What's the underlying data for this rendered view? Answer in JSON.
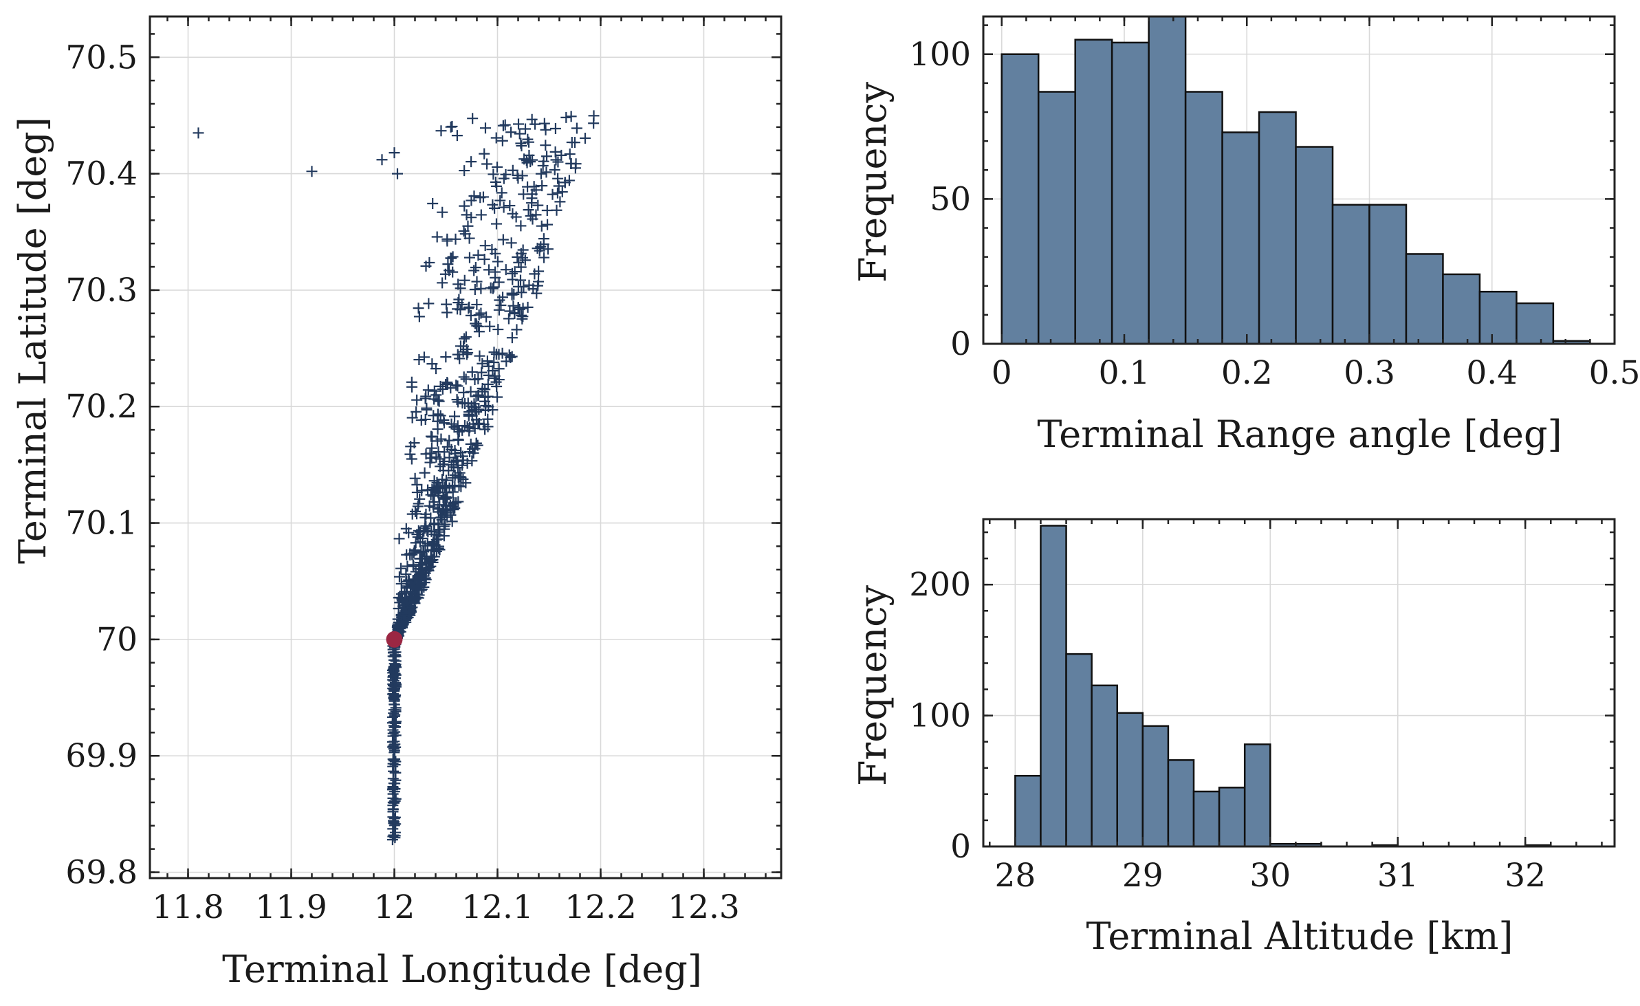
{
  "chart_data": [
    {
      "type": "scatter",
      "xlabel": "Terminal Longitude [deg]",
      "ylabel": "Terminal Latitude [deg]",
      "xlim": [
        11.763,
        12.375
      ],
      "ylim": [
        69.795,
        70.535
      ],
      "xticks": [
        11.8,
        11.9,
        12.0,
        12.1,
        12.2,
        12.3
      ],
      "xtick_labels": [
        "11.8",
        "11.9",
        "12",
        "12.1",
        "12.2",
        "12.3"
      ],
      "yticks": [
        69.8,
        69.9,
        70.0,
        70.1,
        70.2,
        70.3,
        70.4,
        70.5
      ],
      "ytick_labels": [
        "69.8",
        "69.9",
        "70",
        "70.1",
        "70.2",
        "70.3",
        "70.4",
        "70.5"
      ],
      "grid": true,
      "marker": "+",
      "marker_color": "#223a5e",
      "nominal_point": {
        "x": 12.0,
        "y": 70.0,
        "color": "#9b2743"
      },
      "outliers": [
        {
          "x": 11.81,
          "y": 70.435
        },
        {
          "x": 11.92,
          "y": 70.402
        },
        {
          "x": 11.988,
          "y": 70.412
        },
        {
          "x": 12.0,
          "y": 70.418
        },
        {
          "x": 12.003,
          "y": 70.4
        }
      ],
      "cloud": {
        "n_points": 1000,
        "vertical_tail": {
          "x": 12.0,
          "y_min": 69.828,
          "y_max": 70.0
        },
        "plume_bounds": {
          "lat_top": 70.45,
          "lon_left": 12.0,
          "lon_right_at_top": 12.195
        }
      }
    },
    {
      "type": "bar",
      "histogram": true,
      "xlabel": "Terminal Range angle [deg]",
      "ylabel": "Frequency",
      "xlim": [
        -0.015,
        0.5
      ],
      "ylim": [
        0,
        113
      ],
      "xticks": [
        0,
        0.1,
        0.2,
        0.3,
        0.4,
        0.5
      ],
      "xtick_labels": [
        "0",
        "0.1",
        "0.2",
        "0.3",
        "0.4",
        "0.5"
      ],
      "yticks": [
        0,
        50,
        100
      ],
      "ytick_labels": [
        "0",
        "50",
        "100"
      ],
      "bin_edges": [
        0,
        0.03,
        0.06,
        0.09,
        0.12,
        0.15,
        0.18,
        0.21,
        0.24,
        0.27,
        0.3,
        0.33,
        0.36,
        0.39,
        0.42,
        0.45,
        0.48
      ],
      "values": [
        100,
        87,
        105,
        104,
        113,
        87,
        73,
        80,
        68,
        48,
        48,
        31,
        24,
        18,
        14,
        1
      ],
      "grid": true,
      "bar_color": "#62809f"
    },
    {
      "type": "bar",
      "histogram": true,
      "xlabel": "Terminal Altitude [km]",
      "ylabel": "Frequency",
      "xlim": [
        27.75,
        32.7
      ],
      "ylim": [
        0,
        250
      ],
      "xticks": [
        28,
        29,
        30,
        31,
        32
      ],
      "xtick_labels": [
        "28",
        "29",
        "30",
        "31",
        "32"
      ],
      "yticks": [
        0,
        100,
        200
      ],
      "ytick_labels": [
        "0",
        "100",
        "200"
      ],
      "bin_edges": [
        28.0,
        28.2,
        28.4,
        28.6,
        28.8,
        29.0,
        29.2,
        29.4,
        29.6,
        29.8,
        30.0,
        30.2,
        30.4,
        30.6,
        30.8,
        31.0,
        31.2,
        31.4,
        31.6,
        31.8,
        32.0,
        32.2
      ],
      "values": [
        54,
        245,
        147,
        123,
        102,
        92,
        66,
        42,
        45,
        78,
        2,
        2,
        0,
        0,
        1,
        0,
        0,
        0,
        0,
        0,
        1
      ],
      "grid": true,
      "bar_color": "#62809f"
    }
  ]
}
